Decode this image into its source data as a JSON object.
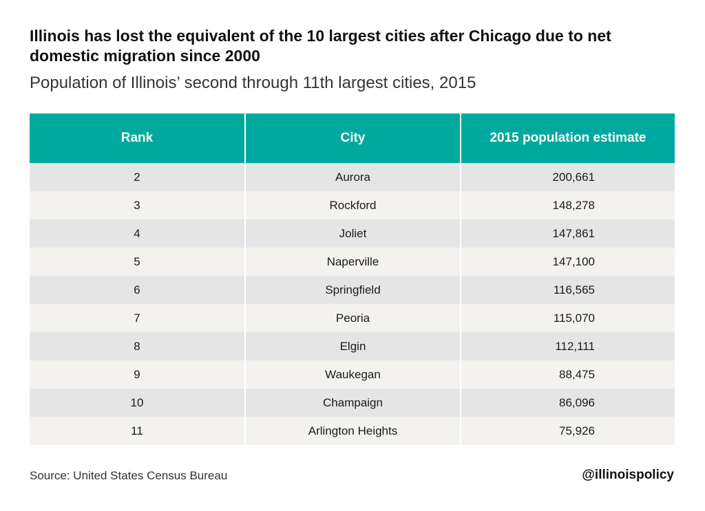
{
  "header": {
    "title": "Illinois has lost the equivalent of the 10 largest cities after Chicago due to net domestic migration since 2000",
    "subtitle": "Population of Illinois’ second through 11th largest cities, 2015"
  },
  "footer": {
    "source": "Source: United States Census Bureau",
    "handle": "@illinoispolicy"
  },
  "colors": {
    "header_bg": "#00a99d",
    "row_odd": "#e6e5e6",
    "row_even": "#f3f2ef"
  },
  "chart_data": {
    "type": "table",
    "title": "Illinois has lost the equivalent of the 10 largest cities after Chicago due to net domestic migration since 2000",
    "subtitle": "Population of Illinois’ second through 11th largest cities, 2015",
    "columns": [
      "Rank",
      "City",
      "2015 population estimate"
    ],
    "rows": [
      [
        "2",
        "Aurora",
        "200,661"
      ],
      [
        "3",
        "Rockford",
        "148,278"
      ],
      [
        "4",
        "Joliet",
        "147,861"
      ],
      [
        "5",
        "Naperville",
        "147,100"
      ],
      [
        "6",
        "Springfield",
        "116,565"
      ],
      [
        "7",
        "Peoria",
        "115,070"
      ],
      [
        "8",
        "Elgin",
        "112,111"
      ],
      [
        "9",
        "Waukegan",
        "88,475"
      ],
      [
        "10",
        "Champaign",
        "86,096"
      ],
      [
        "11",
        "Arlington Heights",
        "75,926"
      ]
    ]
  }
}
